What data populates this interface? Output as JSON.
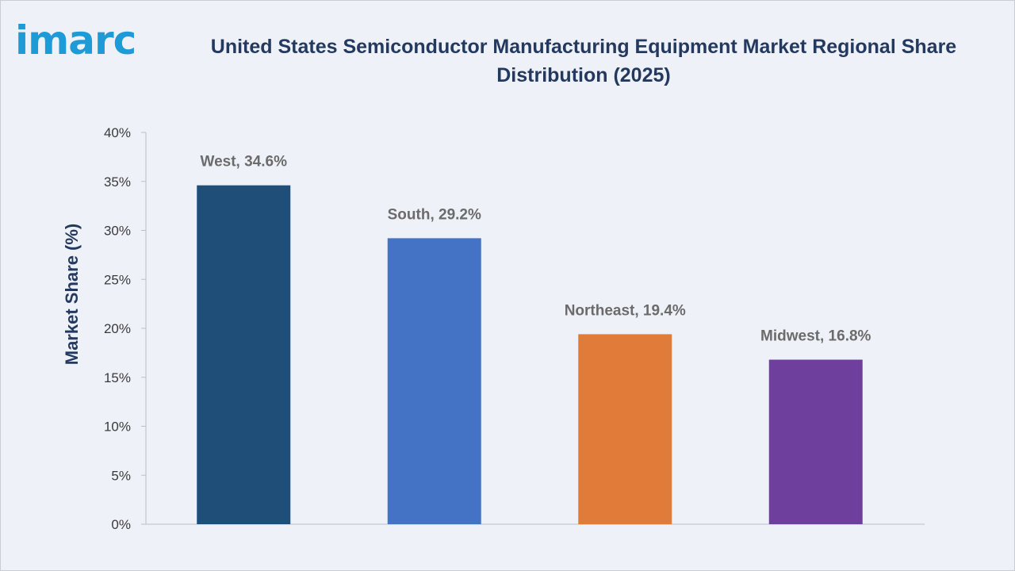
{
  "logo": {
    "text": "imarc"
  },
  "chart_data": {
    "type": "bar",
    "title": "United States Semiconductor Manufacturing Equipment Market Regional Share Distribution (2025)",
    "xlabel": "",
    "ylabel": "Market Share (%)",
    "ylim": [
      0,
      40
    ],
    "yticks": [
      "0%",
      "5%",
      "10%",
      "15%",
      "20%",
      "25%",
      "30%",
      "35%",
      "40%"
    ],
    "grid": false,
    "categories": [
      "West",
      "South",
      "Northeast",
      "Midwest"
    ],
    "values": [
      34.6,
      29.2,
      19.4,
      16.8
    ],
    "data_labels": [
      "West, 34.6%",
      "South, 29.2%",
      "Northeast, 19.4%",
      "Midwest, 16.8%"
    ],
    "colors": [
      "#1f4e79",
      "#4472c4",
      "#e07b39",
      "#6f3f9e"
    ]
  }
}
